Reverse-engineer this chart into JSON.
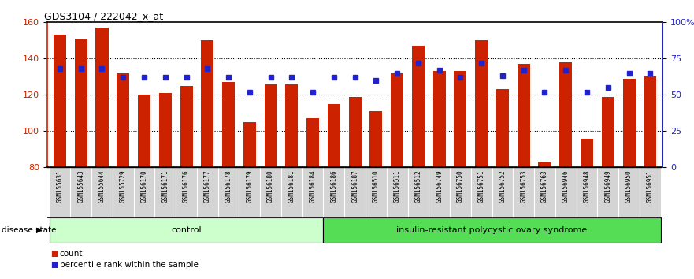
{
  "title": "GDS3104 / 222042_x_at",
  "samples": [
    "GSM155631",
    "GSM155643",
    "GSM155644",
    "GSM155729",
    "GSM156170",
    "GSM156171",
    "GSM156176",
    "GSM156177",
    "GSM156178",
    "GSM156179",
    "GSM156180",
    "GSM156181",
    "GSM156184",
    "GSM156186",
    "GSM156187",
    "GSM156510",
    "GSM156511",
    "GSM156512",
    "GSM156749",
    "GSM156750",
    "GSM156751",
    "GSM156752",
    "GSM156753",
    "GSM156763",
    "GSM156946",
    "GSM156948",
    "GSM156949",
    "GSM156950",
    "GSM156951"
  ],
  "bar_values": [
    153,
    151,
    157,
    132,
    120,
    121,
    125,
    150,
    127,
    105,
    126,
    126,
    107,
    115,
    119,
    111,
    132,
    147,
    133,
    133,
    150,
    123,
    137,
    83,
    138,
    96,
    119,
    129,
    130
  ],
  "percentile_values": [
    68,
    68,
    68,
    62,
    62,
    62,
    62,
    68,
    62,
    52,
    62,
    62,
    52,
    62,
    62,
    60,
    65,
    72,
    67,
    62,
    72,
    63,
    67,
    52,
    67,
    52,
    55,
    65,
    65
  ],
  "control_count": 13,
  "group1_label": "control",
  "group2_label": "insulin-resistant polycystic ovary syndrome",
  "bar_color": "#cc2200",
  "percentile_color": "#2222cc",
  "ylim_left": [
    80,
    160
  ],
  "ylim_right": [
    0,
    100
  ],
  "yticks_left": [
    80,
    100,
    120,
    140,
    160
  ],
  "yticks_right": [
    0,
    25,
    50,
    75,
    100
  ],
  "yticklabels_right": [
    "0",
    "25",
    "50",
    "75",
    "100%"
  ],
  "grid_values": [
    100,
    120,
    140
  ],
  "disease_state_label": "disease state",
  "legend_count_label": "count",
  "legend_percentile_label": "percentile rank within the sample",
  "bgcolor_label": "#d4d4d4",
  "control_bg": "#ccffcc",
  "pcos_bg": "#55dd55"
}
